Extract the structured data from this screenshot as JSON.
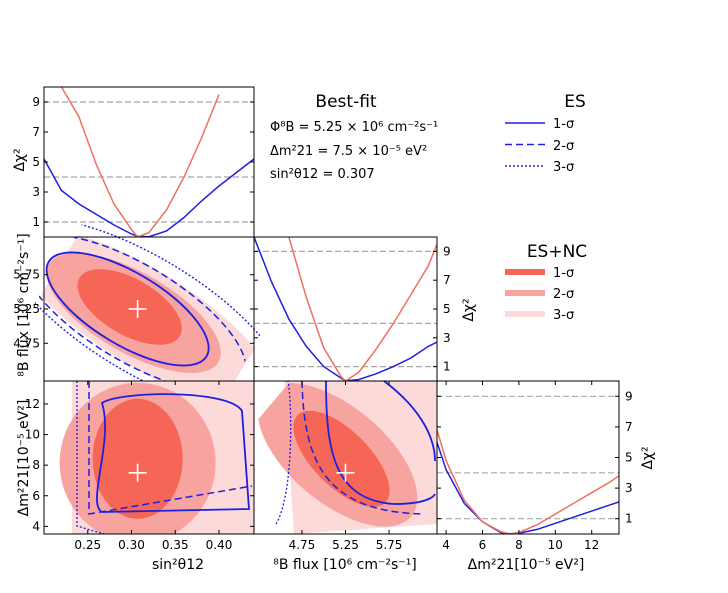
{
  "chart_data": {
    "type": "corner-plot",
    "best_fit": {
      "title": "Best-fit",
      "flux_text": "Φ⁸B = 5.25 × 10⁶ cm⁻²s⁻¹",
      "dm_text": "Δm²21 = 7.5 × 10⁻⁵ eV²",
      "sin_text": "sin²θ12 = 0.307",
      "sin2theta12": 0.307,
      "flux": 5.25,
      "dm21": 7.5
    },
    "axes": {
      "sin2theta12": {
        "label": "sin²θ12",
        "range": [
          0.2,
          0.44
        ],
        "ticks": [
          "0.25",
          "0.30",
          "0.35",
          "0.40"
        ]
      },
      "flux": {
        "label": "⁸B flux [10⁶ cm⁻²s⁻¹]",
        "range": [
          4.2,
          6.3
        ],
        "ticks": [
          "4.75",
          "5.25",
          "5.75"
        ]
      },
      "dm21": {
        "label": "Δm²21[10⁻⁵ eV²]",
        "range": [
          3.5,
          13.5
        ],
        "ticks": [
          "4",
          "6",
          "8",
          "10",
          "12"
        ]
      },
      "chi2": {
        "label": "Δχ²",
        "range": [
          0,
          10
        ],
        "ticks": [
          "1",
          "3",
          "5",
          "7",
          "9"
        ]
      }
    },
    "reference_lines_chi2": [
      1,
      4,
      9
    ],
    "legend_es": {
      "title": "ES",
      "entries": [
        "1-σ",
        "2-σ",
        "3-σ"
      ]
    },
    "legend_esnc": {
      "title": "ES+NC",
      "entries": [
        "1-σ",
        "2-σ",
        "3-σ"
      ]
    },
    "colors": {
      "es": "#1f1fe0",
      "esnc_1": "#f56656",
      "esnc_2": "#f7a4a0",
      "esnc_3": "#fcdada",
      "curve_esnc": "#f0705e",
      "ref": "#a8a8a8"
    },
    "profile_sin": {
      "x": [
        0.2,
        0.22,
        0.24,
        0.26,
        0.28,
        0.3,
        0.307,
        0.32,
        0.34,
        0.36,
        0.38,
        0.4,
        0.42,
        0.44
      ],
      "es": [
        5.2,
        3.1,
        2.2,
        1.5,
        0.8,
        0.2,
        0.05,
        0.02,
        0.4,
        1.3,
        2.4,
        3.4,
        4.3,
        5.2
      ],
      "esnc": [
        null,
        10.0,
        8.0,
        4.8,
        2.2,
        0.5,
        0.0,
        0.3,
        1.8,
        4.0,
        6.6,
        9.5,
        null,
        null
      ]
    },
    "profile_flux": {
      "x": [
        4.2,
        4.4,
        4.6,
        4.8,
        5.0,
        5.2,
        5.25,
        5.4,
        5.6,
        5.8,
        6.0,
        6.2,
        6.3
      ],
      "es": [
        10.0,
        6.9,
        4.3,
        2.4,
        1.0,
        0.2,
        0.02,
        0.1,
        0.5,
        1.0,
        1.6,
        2.4,
        2.7
      ],
      "esnc": [
        null,
        null,
        10.0,
        5.8,
        2.3,
        0.3,
        0.0,
        0.6,
        2.2,
        4.0,
        6.0,
        8.0,
        9.5
      ]
    },
    "profile_dm": {
      "x": [
        3.5,
        4,
        5,
        6,
        7,
        7.5,
        8,
        9,
        10,
        11,
        12,
        13,
        13.5
      ],
      "es": [
        6.0,
        4.2,
        2.0,
        0.8,
        0.1,
        0.02,
        0.05,
        0.3,
        0.7,
        1.1,
        1.5,
        1.9,
        2.1
      ],
      "esnc": [
        6.8,
        4.8,
        2.2,
        0.8,
        0.15,
        0.0,
        0.1,
        0.6,
        1.3,
        2.0,
        2.7,
        3.4,
        3.8
      ]
    }
  }
}
